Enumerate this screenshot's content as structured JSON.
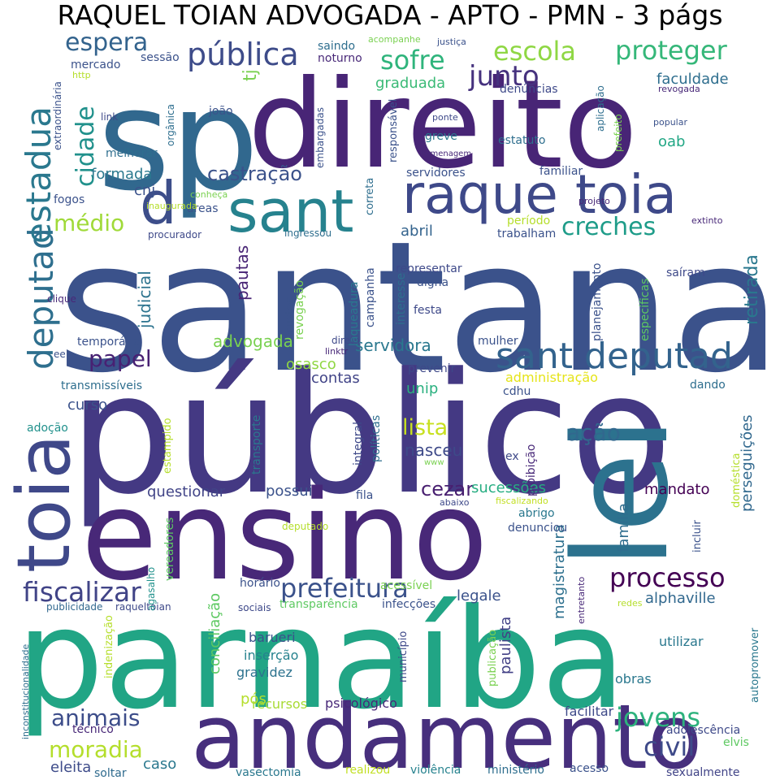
{
  "title": "RAQUEL TOIAN ADVOGADA - APTO - PMN - 3 págs",
  "words": [
    {
      "text": "santana",
      "color": "#3b528b"
    },
    {
      "text": "público",
      "color": "#443983"
    },
    {
      "text": "parnaíba",
      "color": "#21a585"
    },
    {
      "text": "ensino",
      "color": "#482878"
    },
    {
      "text": "sp",
      "color": "#31688e"
    },
    {
      "text": "direito",
      "color": "#482576"
    },
    {
      "text": "andamento",
      "color": "#472f7d"
    },
    {
      "text": "lei",
      "color": "#2c728e"
    },
    {
      "text": "raque toia",
      "color": "#3e4989"
    },
    {
      "text": "sant",
      "color": "#26828e"
    },
    {
      "text": "toia",
      "color": "#3f4889"
    },
    {
      "text": "sant deputad",
      "color": "#33638d"
    },
    {
      "text": "d",
      "color": "#3d4e8a"
    },
    {
      "text": "deputad",
      "color": "#2e6f8e"
    },
    {
      "text": "estadua",
      "color": "#2a788e"
    },
    {
      "text": "prefeitura",
      "color": "#3b528b"
    },
    {
      "text": "fiscalizar",
      "color": "#414487"
    },
    {
      "text": "processo",
      "color": "#440154"
    },
    {
      "text": "civil",
      "color": "#3e4a89"
    },
    {
      "text": "jovens",
      "color": "#2db27d"
    },
    {
      "text": "animais",
      "color": "#3d4d8a"
    },
    {
      "text": "moradia",
      "color": "#b4de2c"
    },
    {
      "text": "pública",
      "color": "#3e4c8a"
    },
    {
      "text": "escola",
      "color": "#8fd744"
    },
    {
      "text": "proteger",
      "color": "#35b779"
    },
    {
      "text": "sofre",
      "color": "#2fb47c"
    },
    {
      "text": "junto",
      "color": "#46327e"
    },
    {
      "text": "espera",
      "color": "#33638d"
    },
    {
      "text": "cidade",
      "color": "#21918c"
    },
    {
      "text": "castração",
      "color": "#3b528b"
    },
    {
      "text": "médio",
      "color": "#a0da39"
    },
    {
      "text": "creches",
      "color": "#1e9c89"
    },
    {
      "text": "papel",
      "color": "#482173"
    },
    {
      "text": "lista",
      "color": "#c8e020"
    },
    {
      "text": "cezar",
      "color": "#481f70"
    },
    {
      "text": "ação",
      "color": "#31688e"
    },
    {
      "text": "retirada",
      "color": "#2a788e"
    },
    {
      "text": "faculdade",
      "color": "#2e6e8e"
    },
    {
      "text": "oab",
      "color": "#22a785"
    },
    {
      "text": "formada",
      "color": "#2a788e"
    },
    {
      "text": "cnj",
      "color": "#3b528b"
    },
    {
      "text": "abril",
      "color": "#33638d"
    },
    {
      "text": "graduada",
      "color": "#3aba76"
    },
    {
      "text": "judicial",
      "color": "#2c738e"
    },
    {
      "text": "pautas",
      "color": "#482475"
    },
    {
      "text": "advogada",
      "color": "#7ad151"
    },
    {
      "text": "servidora",
      "color": "#2a788e"
    },
    {
      "text": "osasco",
      "color": "#90d743"
    },
    {
      "text": "contas",
      "color": "#414487"
    },
    {
      "text": "unip",
      "color": "#2ab07f"
    },
    {
      "text": "nasceu",
      "color": "#3e4a89"
    },
    {
      "text": "administração",
      "color": "#e5e419"
    },
    {
      "text": "mandato",
      "color": "#440154"
    },
    {
      "text": "família",
      "color": "#2e6d8e"
    },
    {
      "text": "sucessões",
      "color": "#26ad81"
    },
    {
      "text": "possui",
      "color": "#3b528b"
    },
    {
      "text": "questionar",
      "color": "#414487"
    },
    {
      "text": "curso",
      "color": "#3b528b"
    },
    {
      "text": "perseguições",
      "color": "#31688e"
    },
    {
      "text": "magistratura",
      "color": "#2d708e"
    },
    {
      "text": "paulista",
      "color": "#424086"
    },
    {
      "text": "conciliação",
      "color": "#5ec962"
    },
    {
      "text": "alphaville",
      "color": "#31688e"
    },
    {
      "text": "legale",
      "color": "#3b528b"
    },
    {
      "text": "eleita",
      "color": "#3e4c8a"
    },
    {
      "text": "caso",
      "color": "#2a788e"
    },
    {
      "text": "pós",
      "color": "#b5de2b"
    },
    {
      "text": "facilitar",
      "color": "#3e4a89"
    },
    {
      "text": "gravidez",
      "color": "#2c728e"
    },
    {
      "text": "utilizar",
      "color": "#2a788e"
    },
    {
      "text": "obras",
      "color": "#2a788e"
    },
    {
      "text": "barueri",
      "color": "#3b528b"
    },
    {
      "text": "inserção",
      "color": "#26828e"
    },
    {
      "text": "recursos",
      "color": "#a8db34"
    },
    {
      "text": "psicológico",
      "color": "#482878"
    },
    {
      "text": "vasectomia",
      "color": "#2a788e"
    },
    {
      "text": "soltar",
      "color": "#2f6b8e"
    },
    {
      "text": "realizou",
      "color": "#c2df23"
    },
    {
      "text": "violência",
      "color": "#26828e"
    },
    {
      "text": "ministério",
      "color": "#2e6e8e"
    },
    {
      "text": "acesso",
      "color": "#3b528b"
    },
    {
      "text": "sexualmente",
      "color": "#414487"
    },
    {
      "text": "elvis",
      "color": "#5ec962"
    },
    {
      "text": "adolescência",
      "color": "#3e4989"
    },
    {
      "text": "técnico",
      "color": "#482878"
    },
    {
      "text": "transparência",
      "color": "#5ec962"
    },
    {
      "text": "infecções",
      "color": "#3b528b"
    },
    {
      "text": "acessível",
      "color": "#7ad151"
    },
    {
      "text": "município",
      "color": "#3e4989"
    },
    {
      "text": "publicação",
      "color": "#7ad151"
    },
    {
      "text": "autopromover",
      "color": "#2a788e"
    },
    {
      "text": "indenização",
      "color": "#b5de2b"
    },
    {
      "text": "horário",
      "color": "#3b528b"
    },
    {
      "text": "sociais",
      "color": "#3e4989"
    },
    {
      "text": "publicidade",
      "color": "#31688e"
    },
    {
      "text": "raqueltoian",
      "color": "#3e4989"
    },
    {
      "text": "inconstitucionalidade",
      "color": "#2e6e8e"
    },
    {
      "text": "agasalho",
      "color": "#21918c"
    },
    {
      "text": "vereadores",
      "color": "#5ec962"
    },
    {
      "text": "deputado",
      "color": "#b5de2b"
    },
    {
      "text": "abaixo",
      "color": "#3e4989"
    },
    {
      "text": "fiscalizando",
      "color": "#c2df23"
    },
    {
      "text": "abrigo",
      "color": "#2a788e"
    },
    {
      "text": "denunciou",
      "color": "#3b528b"
    },
    {
      "text": "incluir",
      "color": "#3b528b"
    },
    {
      "text": "doméstica",
      "color": "#b5de2b"
    },
    {
      "text": "proibição",
      "color": "#482878"
    },
    {
      "text": "ex",
      "color": "#3e4989"
    },
    {
      "text": "fila",
      "color": "#3b528b"
    },
    {
      "text": "integral",
      "color": "#3e4989"
    },
    {
      "text": "políticas",
      "color": "#2e6e8e"
    },
    {
      "text": "www",
      "color": "#7ad151"
    },
    {
      "text": "transporte",
      "color": "#2a788e"
    },
    {
      "text": "estampido",
      "color": "#b5de2b"
    },
    {
      "text": "adoção",
      "color": "#21918c"
    },
    {
      "text": "transmissíveis",
      "color": "#2e6e8e"
    },
    {
      "text": "ee",
      "color": "#3b528b"
    },
    {
      "text": "temporária",
      "color": "#3b528b"
    },
    {
      "text": "clique",
      "color": "#482878"
    },
    {
      "text": "prevenir",
      "color": "#3e4989"
    },
    {
      "text": "cdhu",
      "color": "#3b528b"
    },
    {
      "text": "dando",
      "color": "#2e6e8e"
    },
    {
      "text": "mulher",
      "color": "#3b528b"
    },
    {
      "text": "direta",
      "color": "#3e4989"
    },
    {
      "text": "linktr",
      "color": "#482878"
    },
    {
      "text": "custos",
      "color": "#3b528b"
    },
    {
      "text": "revogação",
      "color": "#7ad151"
    },
    {
      "text": "laqueadura",
      "color": "#2a788e"
    },
    {
      "text": "campanha",
      "color": "#3b528b"
    },
    {
      "text": "festa",
      "color": "#3e4989"
    },
    {
      "text": "digna",
      "color": "#3b528b"
    },
    {
      "text": "representar",
      "color": "#3e4989"
    },
    {
      "text": "interesse",
      "color": "#2e6e8e"
    },
    {
      "text": "planejamento",
      "color": "#3b528b"
    },
    {
      "text": "específicas",
      "color": "#5ec962"
    },
    {
      "text": "saíram",
      "color": "#3e4989"
    },
    {
      "text": "trabalham",
      "color": "#3b528b"
    },
    {
      "text": "período",
      "color": "#b5de2b"
    },
    {
      "text": "extinto",
      "color": "#482878"
    },
    {
      "text": "projeto",
      "color": "#482878"
    },
    {
      "text": "ingressou",
      "color": "#2e6e8e"
    },
    {
      "text": "procurador",
      "color": "#3e4989"
    },
    {
      "text": "áreas",
      "color": "#3b528b"
    },
    {
      "text": "conheça",
      "color": "#7ad151"
    },
    {
      "text": "inaugurada",
      "color": "#b5de2b"
    },
    {
      "text": "fogos",
      "color": "#3b528b"
    },
    {
      "text": "melhorar",
      "color": "#2e6e8e"
    },
    {
      "text": "orgânica",
      "color": "#2e6e8e"
    },
    {
      "text": "joão",
      "color": "#3b528b"
    },
    {
      "text": "link",
      "color": "#3e4989"
    },
    {
      "text": "extraordinária",
      "color": "#3b528b"
    },
    {
      "text": "http",
      "color": "#b5de2b"
    },
    {
      "text": "mercado",
      "color": "#3b528b"
    },
    {
      "text": "sessão",
      "color": "#3b528b"
    },
    {
      "text": "saindo",
      "color": "#2e6e8e"
    },
    {
      "text": "noturno",
      "color": "#482878"
    },
    {
      "text": "acompanhe",
      "color": "#7ad151"
    },
    {
      "text": "justiça",
      "color": "#3b528b"
    },
    {
      "text": "tj",
      "color": "#7ad151"
    },
    {
      "text": "embargadas",
      "color": "#3b528b"
    },
    {
      "text": "responsável",
      "color": "#3b528b"
    },
    {
      "text": "correta",
      "color": "#2e6e8e"
    },
    {
      "text": "greve",
      "color": "#2a788e"
    },
    {
      "text": "ponte",
      "color": "#3e4989"
    },
    {
      "text": "homenagem",
      "color": "#482878"
    },
    {
      "text": "servidores",
      "color": "#3b528b"
    },
    {
      "text": "denúncias",
      "color": "#3e4989"
    },
    {
      "text": "aplicação",
      "color": "#2e6e8e"
    },
    {
      "text": "prefeito",
      "color": "#7ad151"
    },
    {
      "text": "estatuto",
      "color": "#2e6e8e"
    },
    {
      "text": "familiar",
      "color": "#3b528b"
    },
    {
      "text": "revogada",
      "color": "#482878"
    },
    {
      "text": "popular",
      "color": "#3b528b"
    },
    {
      "text": "redes",
      "color": "#b5de2b"
    },
    {
      "text": "entretanto",
      "color": "#482878"
    }
  ]
}
